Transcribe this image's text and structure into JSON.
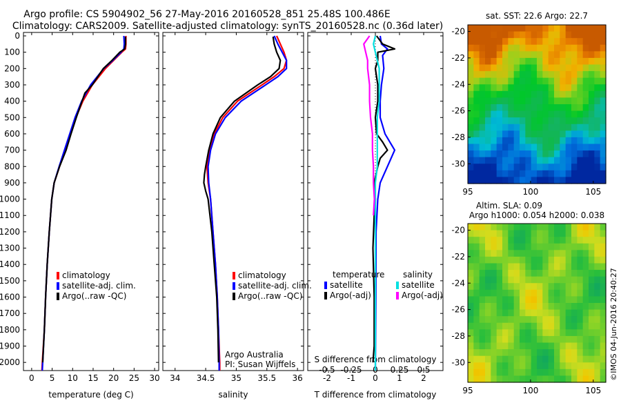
{
  "header": {
    "line1": "Argo profile: CS 5904902_56 27-May-2016 20160528_851 25.48S 100.486E",
    "line2": "Climatology: CARS2009. Satellite-adjusted climatology: synTS_20160528.nc (0.36d later)"
  },
  "chart_data": [
    {
      "type": "line",
      "xlabel": "temperature (deg C)",
      "xlim": [
        -2,
        31
      ],
      "ylim": [
        0,
        2050
      ],
      "y_reversed": true,
      "xticks": [
        0,
        5,
        10,
        15,
        20,
        25,
        30
      ],
      "yticks": [
        0,
        100,
        200,
        300,
        400,
        500,
        600,
        700,
        800,
        900,
        1000,
        1100,
        1200,
        1300,
        1400,
        1500,
        1600,
        1700,
        1800,
        1900,
        2000
      ],
      "legend": [
        "climatology",
        "satellite-adj. clim.",
        "Argo(..raw -QC)"
      ],
      "legend_position": "lower-center",
      "series": [
        {
          "name": "climatology",
          "color": "#ff0000",
          "depth": [
            0,
            50,
            80,
            100,
            150,
            200,
            300,
            400,
            500,
            600,
            700,
            800,
            900,
            1000,
            1200,
            1400,
            1600,
            1800,
            2000,
            2050
          ],
          "values": [
            23.0,
            23.0,
            22.9,
            22.0,
            20.0,
            18.0,
            14.8,
            12.5,
            10.8,
            9.5,
            8.2,
            6.8,
            5.5,
            4.9,
            4.3,
            3.8,
            3.4,
            3.1,
            2.6,
            2.5
          ]
        },
        {
          "name": "satellite-adj. clim.",
          "color": "#0000ff",
          "depth": [
            0,
            50,
            80,
            100,
            150,
            200,
            300,
            400,
            500,
            600,
            700,
            800,
            900,
            1000,
            1200,
            1400,
            1600,
            1800,
            2000,
            2050
          ],
          "values": [
            22.5,
            22.6,
            22.5,
            21.8,
            19.8,
            17.6,
            14.4,
            12.2,
            10.6,
            9.3,
            8.0,
            6.7,
            5.5,
            4.9,
            4.3,
            3.8,
            3.4,
            3.1,
            2.7,
            2.6
          ]
        },
        {
          "name": "Argo(..raw -QC)",
          "color": "#000000",
          "depth": [
            5,
            50,
            80,
            100,
            150,
            200,
            300,
            350,
            400,
            500,
            600,
            700,
            800,
            900,
            1000,
            1200,
            1400,
            1600,
            1800,
            2000
          ],
          "values": [
            22.9,
            22.9,
            22.7,
            21.5,
            19.6,
            17.5,
            14.8,
            13.0,
            12.3,
            10.9,
            9.6,
            8.4,
            6.8,
            5.5,
            4.9,
            4.3,
            3.8,
            3.4,
            3.1,
            2.7
          ]
        }
      ]
    },
    {
      "type": "line",
      "xlabel": "salinity",
      "xlim": [
        33.8,
        36.1
      ],
      "ylim": [
        0,
        2050
      ],
      "y_reversed": true,
      "xticks": [
        34,
        34.5,
        35,
        35.5,
        36
      ],
      "legend": [
        "climatology",
        "satellite-adj. clim.",
        "Argo(..raw -QC)"
      ],
      "legend_position": "lower-right",
      "annotation": [
        "Argo Australia",
        "PI: Susan Wijffels"
      ],
      "series": [
        {
          "name": "climatology",
          "color": "#ff0000",
          "depth": [
            0,
            50,
            100,
            150,
            200,
            250,
            300,
            400,
            500,
            600,
            700,
            800,
            900,
            1000,
            1200,
            1400,
            1600,
            1800,
            2000,
            2050
          ],
          "values": [
            35.66,
            35.72,
            35.78,
            35.82,
            35.78,
            35.62,
            35.42,
            35.02,
            34.78,
            34.64,
            34.56,
            34.52,
            34.54,
            34.58,
            34.62,
            34.66,
            34.69,
            34.71,
            34.73,
            34.73
          ]
        },
        {
          "name": "satellite-adj. clim.",
          "color": "#0000ff",
          "depth": [
            0,
            50,
            100,
            150,
            200,
            250,
            300,
            400,
            500,
            600,
            700,
            800,
            900,
            1000,
            1200,
            1400,
            1600,
            1800,
            2000,
            2050
          ],
          "values": [
            35.62,
            35.68,
            35.75,
            35.82,
            35.82,
            35.68,
            35.48,
            35.08,
            34.82,
            34.66,
            34.58,
            34.54,
            34.55,
            34.58,
            34.62,
            34.66,
            34.69,
            34.71,
            34.72,
            34.72
          ]
        },
        {
          "name": "Argo(..raw -QC)",
          "color": "#000000",
          "depth": [
            5,
            50,
            100,
            150,
            200,
            250,
            300,
            400,
            500,
            600,
            700,
            800,
            850,
            900,
            950,
            1000,
            1200,
            1400,
            1600,
            1800,
            2000
          ],
          "values": [
            35.6,
            35.62,
            35.66,
            35.72,
            35.7,
            35.56,
            35.35,
            34.97,
            34.74,
            34.62,
            34.55,
            34.5,
            34.48,
            34.47,
            34.5,
            34.54,
            34.6,
            34.64,
            34.68,
            34.7,
            34.71
          ]
        }
      ]
    },
    {
      "type": "line",
      "xlabel": "T difference from climatology",
      "xlabel_top": "S difference from climatology",
      "xlim": [
        -2.8,
        2.8
      ],
      "ylim": [
        0,
        2050
      ],
      "y_reversed": true,
      "xticks": [
        -2,
        -1,
        0,
        1,
        2
      ],
      "secondary_xticks": [
        "-0.5",
        "-0.25",
        "0",
        "0.25",
        "0.5"
      ],
      "secondary_scale": 4,
      "legend_groups": [
        {
          "title": "temperature",
          "items": [
            "satellite",
            "Argo(-adj)"
          ]
        },
        {
          "title": "salinity",
          "items": [
            "satellite",
            "Argo(-adj)"
          ]
        }
      ],
      "legend_position": "center",
      "series": [
        {
          "name": "T satellite",
          "color": "#0000ff",
          "depth": [
            0,
            50,
            80,
            120,
            200,
            300,
            400,
            500,
            600,
            650,
            700,
            800,
            900,
            1000,
            1200,
            1600,
            2050
          ],
          "values": [
            0.2,
            0.25,
            0.5,
            0.3,
            0.35,
            0.25,
            0.2,
            0.2,
            0.4,
            0.6,
            0.8,
            0.5,
            0.2,
            0.1,
            0.03,
            0.02,
            0.0
          ]
        },
        {
          "name": "T Argo(-adj)",
          "color": "#000000",
          "depth": [
            0,
            50,
            80,
            100,
            150,
            200,
            300,
            400,
            500,
            600,
            650,
            700,
            750,
            800,
            900,
            1000,
            1100,
            1300,
            1600,
            1900,
            2000
          ],
          "values": [
            0.05,
            0.3,
            0.8,
            0.1,
            0.1,
            0.0,
            0.1,
            0.1,
            0.0,
            0.05,
            0.3,
            0.5,
            0.2,
            0.1,
            -0.05,
            0.0,
            -0.05,
            -0.1,
            -0.05,
            -0.05,
            -0.1
          ]
        },
        {
          "name": "S satellite",
          "color": "#00e0e0",
          "depth": [
            0,
            50,
            100,
            200,
            300,
            400,
            500,
            600,
            700,
            800,
            900,
            1000,
            1200,
            1600,
            2050
          ],
          "values": [
            0.0,
            -0.02,
            0.0,
            0.04,
            0.04,
            0.04,
            0.02,
            0.02,
            0.02,
            0.02,
            0.0,
            0.0,
            0.0,
            0.0,
            0.0
          ]
        },
        {
          "name": "S Argo(-adj)",
          "color": "#ff00ff",
          "depth": [
            0,
            50,
            100,
            150,
            200,
            300,
            400,
            500,
            600,
            700,
            800,
            900,
            1000,
            1100
          ],
          "values": [
            -0.06,
            -0.12,
            -0.1,
            -0.08,
            -0.08,
            -0.06,
            -0.06,
            -0.05,
            -0.03,
            -0.03,
            -0.02,
            -0.02,
            -0.01,
            -0.02
          ]
        }
      ]
    },
    {
      "type": "heatmap",
      "title": "sat. SST: 22.6  Argo: 22.7",
      "xticks": [
        95,
        100,
        105
      ],
      "yticks": [
        -20,
        -22,
        -24,
        -26,
        -28,
        -30
      ],
      "xlim": [
        95,
        106
      ],
      "ylim": [
        -31.5,
        -19.5
      ]
    },
    {
      "type": "heatmap",
      "title_line1": "Altim. SLA: 0.09",
      "title_line2": "Argo h1000: 0.054  h2000: 0.038",
      "xticks": [
        95,
        100,
        105
      ],
      "yticks": [
        -20,
        -22,
        -24,
        -26,
        -28,
        -30
      ],
      "xlim": [
        95,
        106
      ],
      "ylim": [
        -31.5,
        -19.5
      ]
    }
  ],
  "watermark": "©IMOS 04-Jun-2016 20:40:27"
}
